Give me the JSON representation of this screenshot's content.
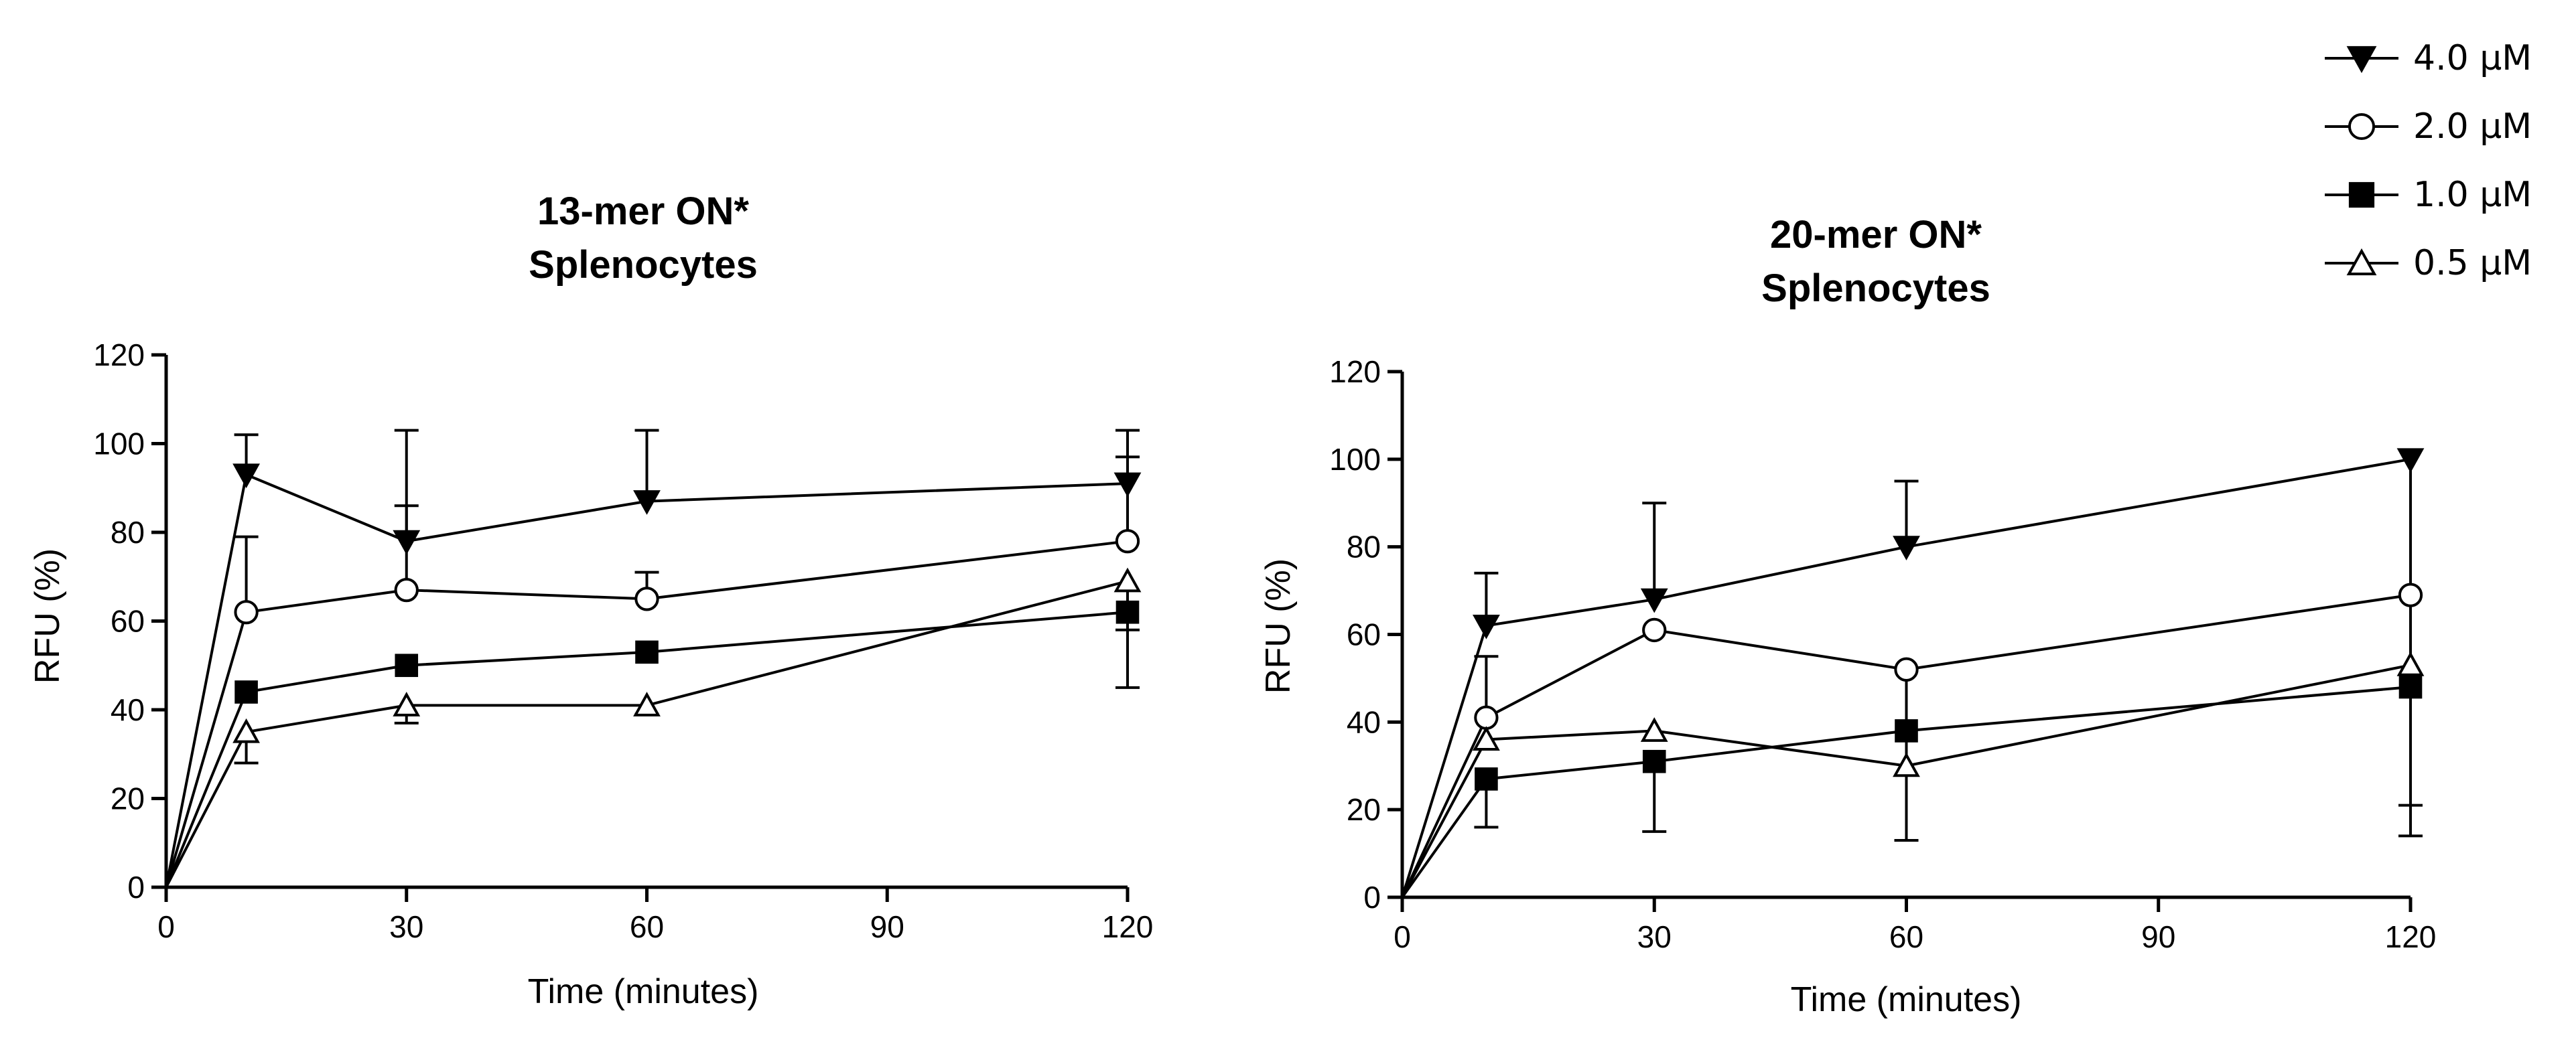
{
  "legend": {
    "position": "top-right",
    "entries": [
      {
        "label": "4.0 μM",
        "marker": "triangle-down-filled"
      },
      {
        "label": "2.0 μM",
        "marker": "circle-open"
      },
      {
        "label": "1.0 μM",
        "marker": "square-filled"
      },
      {
        "label": "0.5 μM",
        "marker": "triangle-up-open"
      }
    ]
  },
  "chart_data": [
    {
      "type": "line",
      "title": [
        "13-mer ON*",
        "Splenocytes"
      ],
      "xlabel": "Time (minutes)",
      "ylabel": "RFU (%)",
      "xlim": [
        0,
        120
      ],
      "ylim": [
        0,
        120
      ],
      "xticks": [
        0,
        30,
        60,
        90,
        120
      ],
      "yticks": [
        0,
        20,
        40,
        60,
        80,
        100,
        120
      ],
      "x": [
        0,
        10,
        30,
        60,
        120
      ],
      "series": [
        {
          "name": "4.0 μM",
          "marker": "triangle-down-filled",
          "values": [
            0,
            93,
            78,
            87,
            91
          ],
          "err_upper": [
            null,
            102,
            103,
            103,
            103
          ]
        },
        {
          "name": "2.0 μM",
          "marker": "circle-open",
          "values": [
            0,
            62,
            67,
            65,
            78
          ],
          "err_upper": [
            null,
            79,
            86,
            71,
            97
          ]
        },
        {
          "name": "1.0 μM",
          "marker": "square-filled",
          "values": [
            0,
            44,
            50,
            53,
            62
          ],
          "err_lower": [
            null,
            null,
            null,
            null,
            45
          ]
        },
        {
          "name": "0.5 μM",
          "marker": "triangle-up-open",
          "values": [
            0,
            35,
            41,
            41,
            69
          ],
          "err_lower": [
            null,
            28,
            37,
            39,
            58
          ]
        }
      ]
    },
    {
      "type": "line",
      "title": [
        "20-mer ON*",
        "Splenocytes"
      ],
      "xlabel": "Time (minutes)",
      "ylabel": "RFU (%)",
      "xlim": [
        0,
        120
      ],
      "ylim": [
        0,
        120
      ],
      "xticks": [
        0,
        30,
        60,
        90,
        120
      ],
      "yticks": [
        0,
        20,
        40,
        60,
        80,
        100,
        120
      ],
      "x": [
        0,
        10,
        30,
        60,
        120
      ],
      "series": [
        {
          "name": "4.0 μM",
          "marker": "triangle-down-filled",
          "values": [
            0,
            62,
            68,
            80,
            100
          ],
          "err_upper": [
            null,
            74,
            90,
            95,
            null
          ],
          "err_lower": [
            null,
            null,
            null,
            null,
            14
          ]
        },
        {
          "name": "2.0 μM",
          "marker": "circle-open",
          "values": [
            0,
            41,
            61,
            52,
            69
          ],
          "err_upper": [
            null,
            55,
            null,
            null,
            null
          ],
          "err_lower": [
            null,
            null,
            null,
            13,
            null
          ]
        },
        {
          "name": "1.0 μM",
          "marker": "square-filled",
          "values": [
            0,
            27,
            31,
            38,
            48
          ],
          "err_lower": [
            null,
            16,
            15,
            null,
            21
          ]
        },
        {
          "name": "0.5 μM",
          "marker": "triangle-up-open",
          "values": [
            0,
            36,
            38,
            30,
            53
          ],
          "err_lower": [
            null,
            null,
            null,
            null,
            null
          ]
        }
      ]
    }
  ]
}
